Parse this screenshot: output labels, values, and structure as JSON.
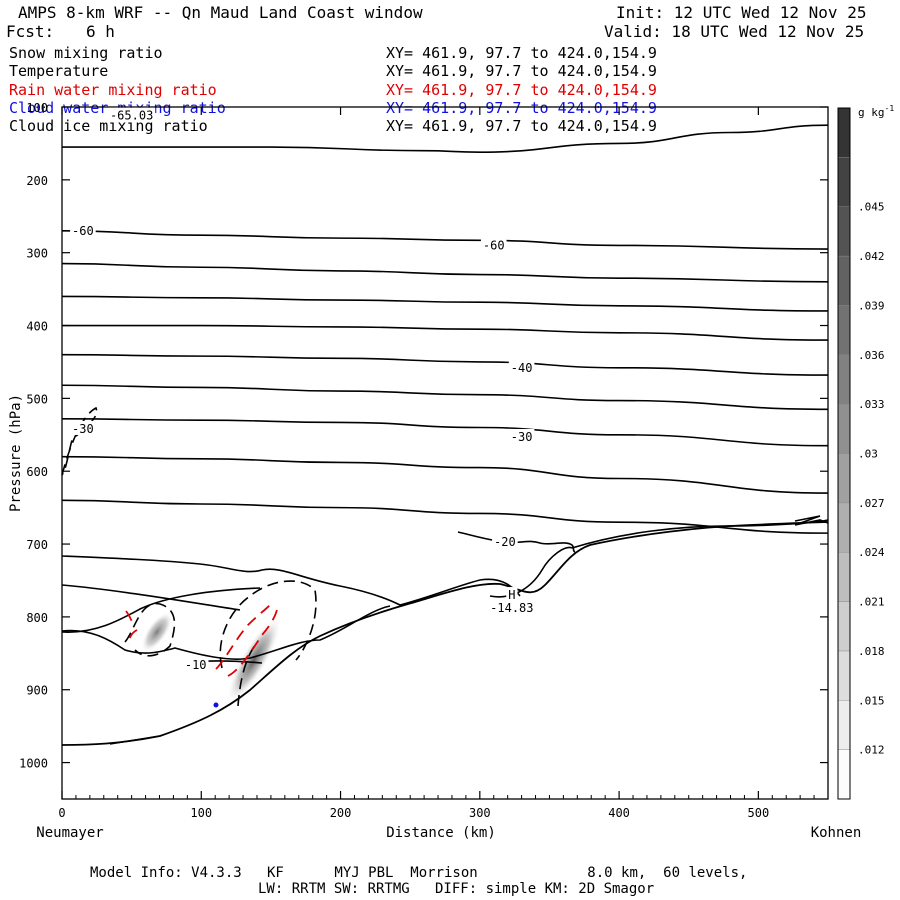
{
  "header": {
    "title": "AMPS 8-km WRF -- Qn Maud Land Coast window",
    "init": "Init: 12 UTC Wed 12 Nov 25",
    "fcst_label": "Fcst:",
    "fcst_value": "6 h",
    "valid": "Valid: 18 UTC Wed 12 Nov 25"
  },
  "legend": [
    {
      "name": "Snow mixing ratio",
      "xy": "XY= 461.9, 97.7 to 424.0,154.9",
      "color": "#000000"
    },
    {
      "name": "Temperature",
      "xy": "XY= 461.9, 97.7 to 424.0,154.9",
      "color": "#000000"
    },
    {
      "name": "Rain water mixing ratio",
      "xy": "XY= 461.9, 97.7 to 424.0,154.9",
      "color": "#e00000"
    },
    {
      "name": "Cloud water mixing ratio",
      "xy": "XY= 461.9, 97.7 to 424.0,154.9",
      "color": "#1010e0"
    },
    {
      "name": "Cloud ice mixing ratio",
      "xy": "XY= 461.9, 97.7 to 424.0,154.9",
      "color": "#000000"
    }
  ],
  "chart_data": {
    "type": "cross-section",
    "xlabel": "Distance (km)",
    "ylabel": "Pressure (hPa)",
    "xlim": [
      0,
      550
    ],
    "ylim": [
      1050,
      100
    ],
    "x_ticks": [
      0,
      100,
      200,
      300,
      400,
      500
    ],
    "y_ticks": [
      100,
      200,
      300,
      400,
      500,
      600,
      700,
      800,
      900,
      1000
    ],
    "left_endpoint": "Neumayer",
    "right_endpoint": "Kohnen",
    "colorbar": {
      "unit": "g kg",
      "unit_exp": "-1",
      "ticks": [
        ".012",
        ".015",
        ".018",
        ".021",
        ".024",
        ".027",
        ".03",
        ".033",
        ".036",
        ".039",
        ".042",
        ".045"
      ]
    },
    "contour_labels": [
      {
        "text": "-65.03",
        "x": 50,
        "p": 112
      },
      {
        "text": "-60",
        "x": 15,
        "p": 270
      },
      {
        "text": "-60",
        "x": 310,
        "p": 290
      },
      {
        "text": "-40",
        "x": 330,
        "p": 458
      },
      {
        "text": "-30",
        "x": 15,
        "p": 542
      },
      {
        "text": "-30",
        "x": 330,
        "p": 553
      },
      {
        "text": "-20",
        "x": 318,
        "p": 697
      },
      {
        "text": "-10",
        "x": 96,
        "p": 866
      },
      {
        "text": "H",
        "x": 323,
        "p": 770
      },
      {
        "text": "-14.83",
        "x": 323,
        "p": 788
      }
    ],
    "temperature_isotherms": [
      {
        "x": [
          0,
          150,
          260,
          300,
          400,
          480,
          550
        ],
        "p": [
          155,
          155,
          160,
          162,
          150,
          135,
          125
        ]
      },
      {
        "x": [
          0,
          100,
          200,
          300,
          400,
          550
        ],
        "p": [
          270,
          276,
          280,
          283,
          290,
          295
        ]
      },
      {
        "x": [
          0,
          100,
          200,
          300,
          400,
          550
        ],
        "p": [
          315,
          320,
          325,
          330,
          335,
          340
        ]
      },
      {
        "x": [
          0,
          100,
          200,
          300,
          400,
          550
        ],
        "p": [
          360,
          362,
          365,
          368,
          373,
          380
        ]
      },
      {
        "x": [
          0,
          100,
          200,
          300,
          400,
          550
        ],
        "p": [
          400,
          400,
          402,
          405,
          410,
          420
        ]
      },
      {
        "x": [
          0,
          100,
          200,
          300,
          400,
          550
        ],
        "p": [
          440,
          442,
          445,
          450,
          458,
          468
        ]
      },
      {
        "x": [
          0,
          100,
          200,
          300,
          400,
          550
        ],
        "p": [
          482,
          485,
          490,
          495,
          503,
          515
        ]
      },
      {
        "x": [
          0,
          100,
          200,
          300,
          400,
          550
        ],
        "p": [
          528,
          530,
          533,
          540,
          550,
          565
        ]
      },
      {
        "x": [
          0,
          100,
          200,
          300,
          400,
          550
        ],
        "p": [
          580,
          583,
          588,
          595,
          610,
          630
        ]
      },
      {
        "x": [
          0,
          100,
          200,
          300,
          400,
          550
        ],
        "p": [
          640,
          645,
          650,
          658,
          670,
          685
        ]
      }
    ]
  },
  "footer": {
    "line1": "Model Info: V4.3.3   KF      MYJ PBL  Morrison             8.0 km,  60 levels,",
    "line2": "LW: RRTM SW: RRTMG   DIFF: simple KM: 2D Smagor"
  }
}
